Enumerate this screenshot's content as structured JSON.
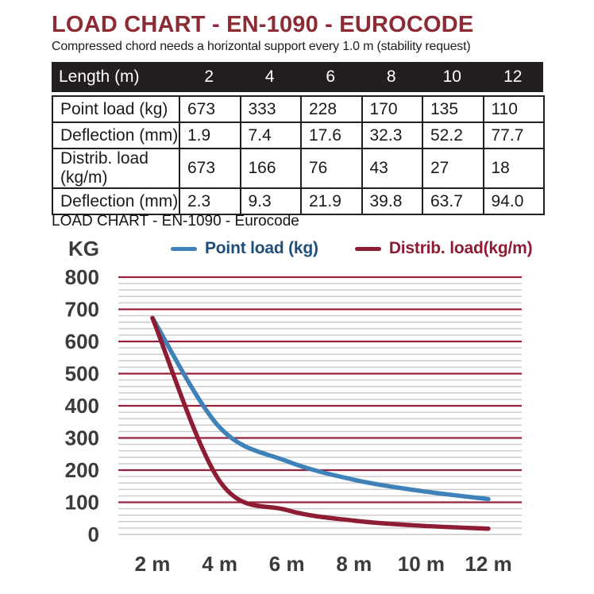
{
  "header": {
    "title": "LOAD CHART - EN-1090 - EUROCODE",
    "subtitle": "Compressed chord needs a horizontal support every 1.0 m (stability request)"
  },
  "table": {
    "header": {
      "label": "Length (m)",
      "values": [
        "2",
        "4",
        "6",
        "8",
        "10",
        "12"
      ]
    },
    "rows": [
      {
        "label": "Point load (kg)",
        "values": [
          "673",
          "333",
          "228",
          "170",
          "135",
          "110"
        ]
      },
      {
        "label": "Deflection (mm)",
        "values": [
          "1.9",
          "7.4",
          "17.6",
          "32.3",
          "52.2",
          "77.7"
        ]
      },
      {
        "label": "Distrib. load (kg/m)",
        "values": [
          "673",
          "166",
          "76",
          "43",
          "27",
          "18"
        ]
      },
      {
        "label": "Deflection (mm)",
        "values": [
          "2.3",
          "9.3",
          "21.9",
          "39.8",
          "63.7",
          "94.0"
        ]
      }
    ]
  },
  "chart": {
    "title": "LOAD CHART - EN-1090 - Eurocode",
    "y_unit_label": "KG",
    "legend": [
      {
        "label": "Point load (kg)",
        "line_color": "#3f82ba",
        "text_color": "#1f4e79"
      },
      {
        "label": "Distrib. load(kg/m)",
        "line_color": "#8e1c33",
        "text_color": "#8e1c33"
      }
    ]
  },
  "chart_data": {
    "type": "line",
    "title": "LOAD CHART - EN-1090 - Eurocode",
    "xlabel": "",
    "ylabel": "KG",
    "x": [
      2,
      4,
      6,
      8,
      10,
      12
    ],
    "x_tick_labels": [
      "2 m",
      "4 m",
      "6 m",
      "8 m",
      "10 m",
      "12 m"
    ],
    "y_ticks": [
      0,
      100,
      200,
      300,
      400,
      500,
      600,
      700,
      800
    ],
    "ylim": [
      0,
      800
    ],
    "y_major_step": 100,
    "y_minor_step": 20,
    "grid": true,
    "legend_position": "top",
    "smooth_lines": true,
    "series": [
      {
        "name": "Point load (kg)",
        "color": "#3f82ba",
        "values": [
          673,
          333,
          228,
          170,
          135,
          110
        ]
      },
      {
        "name": "Distrib. load(kg/m)",
        "color": "#8e1c33",
        "values": [
          673,
          166,
          76,
          43,
          27,
          18
        ]
      }
    ]
  },
  "colors": {
    "title_maroon": "#8c2b33",
    "table_header_bg": "#231f20",
    "major_grid": "#97213a",
    "minor_grid": "#c9c9c9",
    "axis_text": "#3b3b3c",
    "point_load_blue": "#3f82ba",
    "distrib_load_maroon": "#8e1c33"
  }
}
